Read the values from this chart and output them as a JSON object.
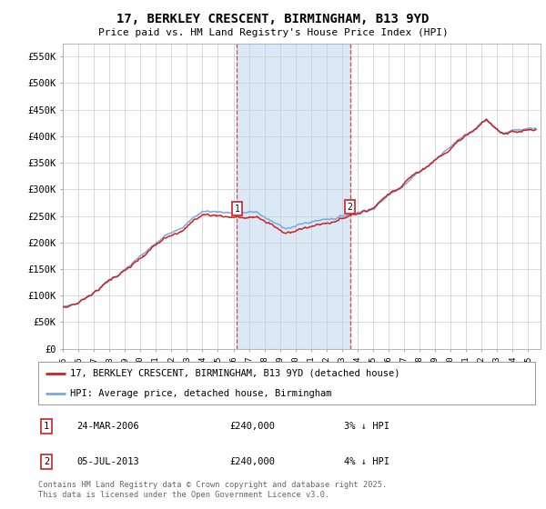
{
  "title": "17, BERKLEY CRESCENT, BIRMINGHAM, B13 9YD",
  "subtitle": "Price paid vs. HM Land Registry's House Price Index (HPI)",
  "ylim": [
    0,
    575000
  ],
  "xlim_start": 1995.0,
  "xlim_end": 2025.8,
  "yticks": [
    0,
    50000,
    100000,
    150000,
    200000,
    250000,
    300000,
    350000,
    400000,
    450000,
    500000,
    550000
  ],
  "ytick_labels": [
    "£0",
    "£50K",
    "£100K",
    "£150K",
    "£200K",
    "£250K",
    "£300K",
    "£350K",
    "£400K",
    "£450K",
    "£500K",
    "£550K"
  ],
  "hpi_color": "#7aaadd",
  "price_color": "#cc2222",
  "sale1_x": 2006.23,
  "sale2_x": 2013.51,
  "sale1_label": "1",
  "sale2_label": "2",
  "legend_line1": "17, BERKLEY CRESCENT, BIRMINGHAM, B13 9YD (detached house)",
  "legend_line2": "HPI: Average price, detached house, Birmingham",
  "table_row1": [
    "1",
    "24-MAR-2006",
    "£240,000",
    "3% ↓ HPI"
  ],
  "table_row2": [
    "2",
    "05-JUL-2013",
    "£240,000",
    "4% ↓ HPI"
  ],
  "footnote": "Contains HM Land Registry data © Crown copyright and database right 2025.\nThis data is licensed under the Open Government Licence v3.0.",
  "bg_color": "#ffffff",
  "grid_color": "#cccccc",
  "sale_vline_color": "#cc2222",
  "shade_color": "#cce0f5"
}
